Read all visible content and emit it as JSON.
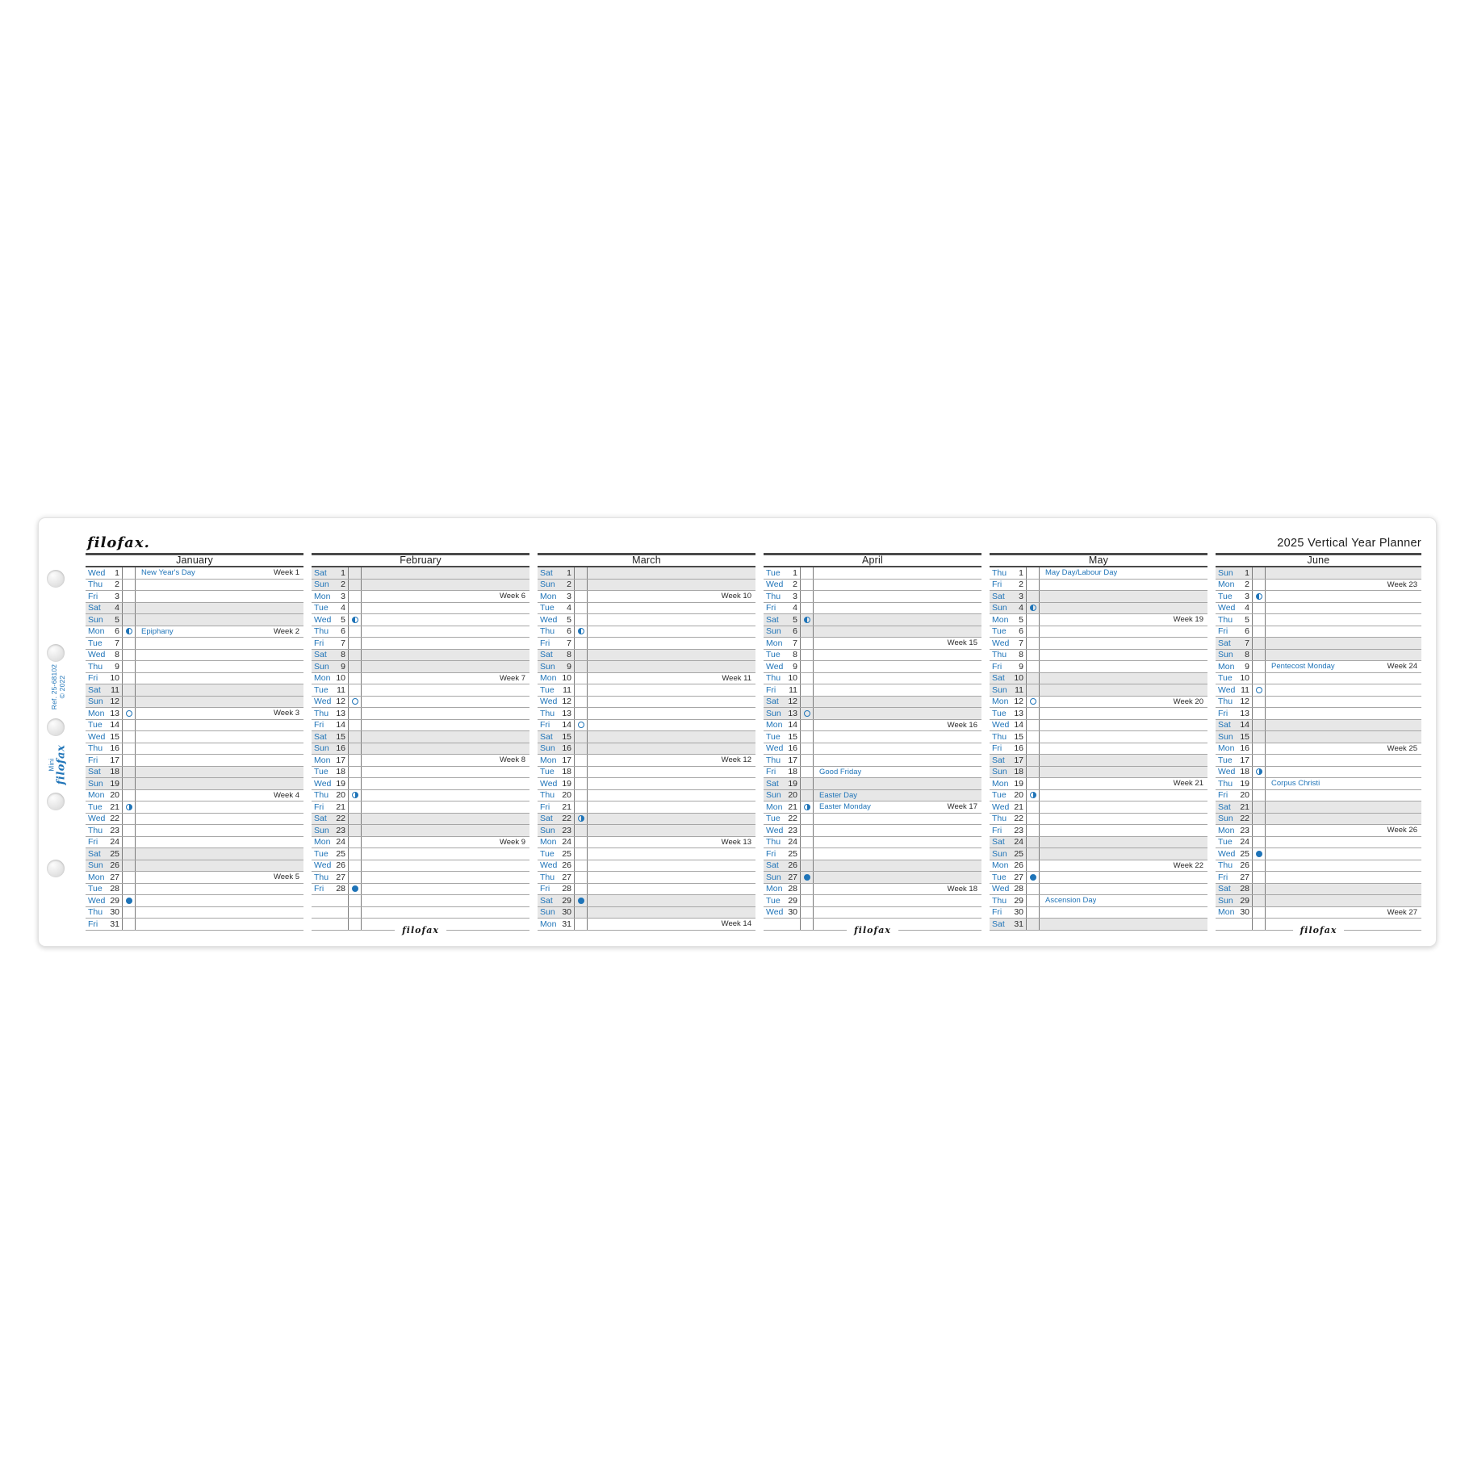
{
  "page": {
    "brand_logo": "filofax.",
    "title": "2025 Vertical Year Planner",
    "side_ref": {
      "line1": "Ref. 25-68102",
      "line2": "© 2022"
    },
    "side_brand": {
      "size_label": "Mini",
      "logo": "filofax"
    },
    "footer_logo": "filofax",
    "colors": {
      "accent_blue": "#1f74b8",
      "weekend_gray": "#e7e7e7",
      "rule_dark": "#4a4a4a",
      "row_line": "#a6a6a6",
      "text_dark": "#2a2a2a"
    },
    "moon_legend": {
      "first-quarter": "half circle filled left",
      "full-moon": "open circle",
      "last-quarter": "half circle filled right",
      "new-moon": "filled circle"
    }
  },
  "months": [
    {
      "name": "January",
      "footer_logo": false,
      "days": [
        {
          "dow": "Wed",
          "date": 1,
          "holiday": "New Year's Day",
          "week": "Week 1"
        },
        {
          "dow": "Thu",
          "date": 2
        },
        {
          "dow": "Fri",
          "date": 3
        },
        {
          "dow": "Sat",
          "date": 4
        },
        {
          "dow": "Sun",
          "date": 5
        },
        {
          "dow": "Mon",
          "date": 6,
          "moon": "first-quarter",
          "holiday": "Epiphany",
          "week": "Week 2"
        },
        {
          "dow": "Tue",
          "date": 7
        },
        {
          "dow": "Wed",
          "date": 8
        },
        {
          "dow": "Thu",
          "date": 9
        },
        {
          "dow": "Fri",
          "date": 10
        },
        {
          "dow": "Sat",
          "date": 11
        },
        {
          "dow": "Sun",
          "date": 12
        },
        {
          "dow": "Mon",
          "date": 13,
          "moon": "full-moon",
          "week": "Week 3"
        },
        {
          "dow": "Tue",
          "date": 14
        },
        {
          "dow": "Wed",
          "date": 15
        },
        {
          "dow": "Thu",
          "date": 16
        },
        {
          "dow": "Fri",
          "date": 17
        },
        {
          "dow": "Sat",
          "date": 18
        },
        {
          "dow": "Sun",
          "date": 19
        },
        {
          "dow": "Mon",
          "date": 20,
          "week": "Week 4"
        },
        {
          "dow": "Tue",
          "date": 21,
          "moon": "last-quarter"
        },
        {
          "dow": "Wed",
          "date": 22
        },
        {
          "dow": "Thu",
          "date": 23
        },
        {
          "dow": "Fri",
          "date": 24
        },
        {
          "dow": "Sat",
          "date": 25
        },
        {
          "dow": "Sun",
          "date": 26
        },
        {
          "dow": "Mon",
          "date": 27,
          "week": "Week 5"
        },
        {
          "dow": "Tue",
          "date": 28
        },
        {
          "dow": "Wed",
          "date": 29,
          "moon": "new-moon"
        },
        {
          "dow": "Thu",
          "date": 30
        },
        {
          "dow": "Fri",
          "date": 31
        }
      ]
    },
    {
      "name": "February",
      "footer_logo": true,
      "days": [
        {
          "dow": "Sat",
          "date": 1
        },
        {
          "dow": "Sun",
          "date": 2
        },
        {
          "dow": "Mon",
          "date": 3,
          "week": "Week 6"
        },
        {
          "dow": "Tue",
          "date": 4
        },
        {
          "dow": "Wed",
          "date": 5,
          "moon": "first-quarter"
        },
        {
          "dow": "Thu",
          "date": 6
        },
        {
          "dow": "Fri",
          "date": 7
        },
        {
          "dow": "Sat",
          "date": 8
        },
        {
          "dow": "Sun",
          "date": 9
        },
        {
          "dow": "Mon",
          "date": 10,
          "week": "Week 7"
        },
        {
          "dow": "Tue",
          "date": 11
        },
        {
          "dow": "Wed",
          "date": 12,
          "moon": "full-moon"
        },
        {
          "dow": "Thu",
          "date": 13
        },
        {
          "dow": "Fri",
          "date": 14
        },
        {
          "dow": "Sat",
          "date": 15
        },
        {
          "dow": "Sun",
          "date": 16
        },
        {
          "dow": "Mon",
          "date": 17,
          "week": "Week 8"
        },
        {
          "dow": "Tue",
          "date": 18
        },
        {
          "dow": "Wed",
          "date": 19
        },
        {
          "dow": "Thu",
          "date": 20,
          "moon": "last-quarter"
        },
        {
          "dow": "Fri",
          "date": 21
        },
        {
          "dow": "Sat",
          "date": 22
        },
        {
          "dow": "Sun",
          "date": 23
        },
        {
          "dow": "Mon",
          "date": 24,
          "week": "Week 9"
        },
        {
          "dow": "Tue",
          "date": 25
        },
        {
          "dow": "Wed",
          "date": 26
        },
        {
          "dow": "Thu",
          "date": 27
        },
        {
          "dow": "Fri",
          "date": 28,
          "moon": "new-moon"
        }
      ]
    },
    {
      "name": "March",
      "footer_logo": false,
      "days": [
        {
          "dow": "Sat",
          "date": 1
        },
        {
          "dow": "Sun",
          "date": 2
        },
        {
          "dow": "Mon",
          "date": 3,
          "week": "Week 10"
        },
        {
          "dow": "Tue",
          "date": 4
        },
        {
          "dow": "Wed",
          "date": 5
        },
        {
          "dow": "Thu",
          "date": 6,
          "moon": "first-quarter"
        },
        {
          "dow": "Fri",
          "date": 7
        },
        {
          "dow": "Sat",
          "date": 8
        },
        {
          "dow": "Sun",
          "date": 9
        },
        {
          "dow": "Mon",
          "date": 10,
          "week": "Week 11"
        },
        {
          "dow": "Tue",
          "date": 11
        },
        {
          "dow": "Wed",
          "date": 12
        },
        {
          "dow": "Thu",
          "date": 13
        },
        {
          "dow": "Fri",
          "date": 14,
          "moon": "full-moon"
        },
        {
          "dow": "Sat",
          "date": 15
        },
        {
          "dow": "Sun",
          "date": 16
        },
        {
          "dow": "Mon",
          "date": 17,
          "week": "Week 12"
        },
        {
          "dow": "Tue",
          "date": 18
        },
        {
          "dow": "Wed",
          "date": 19
        },
        {
          "dow": "Thu",
          "date": 20
        },
        {
          "dow": "Fri",
          "date": 21
        },
        {
          "dow": "Sat",
          "date": 22,
          "moon": "last-quarter"
        },
        {
          "dow": "Sun",
          "date": 23
        },
        {
          "dow": "Mon",
          "date": 24,
          "week": "Week 13"
        },
        {
          "dow": "Tue",
          "date": 25
        },
        {
          "dow": "Wed",
          "date": 26
        },
        {
          "dow": "Thu",
          "date": 27
        },
        {
          "dow": "Fri",
          "date": 28
        },
        {
          "dow": "Sat",
          "date": 29,
          "moon": "new-moon"
        },
        {
          "dow": "Sun",
          "date": 30
        },
        {
          "dow": "Mon",
          "date": 31,
          "week": "Week 14"
        }
      ]
    },
    {
      "name": "April",
      "footer_logo": true,
      "days": [
        {
          "dow": "Tue",
          "date": 1
        },
        {
          "dow": "Wed",
          "date": 2
        },
        {
          "dow": "Thu",
          "date": 3
        },
        {
          "dow": "Fri",
          "date": 4
        },
        {
          "dow": "Sat",
          "date": 5,
          "moon": "first-quarter"
        },
        {
          "dow": "Sun",
          "date": 6
        },
        {
          "dow": "Mon",
          "date": 7,
          "week": "Week 15"
        },
        {
          "dow": "Tue",
          "date": 8
        },
        {
          "dow": "Wed",
          "date": 9
        },
        {
          "dow": "Thu",
          "date": 10
        },
        {
          "dow": "Fri",
          "date": 11
        },
        {
          "dow": "Sat",
          "date": 12
        },
        {
          "dow": "Sun",
          "date": 13,
          "moon": "full-moon"
        },
        {
          "dow": "Mon",
          "date": 14,
          "week": "Week 16"
        },
        {
          "dow": "Tue",
          "date": 15
        },
        {
          "dow": "Wed",
          "date": 16
        },
        {
          "dow": "Thu",
          "date": 17
        },
        {
          "dow": "Fri",
          "date": 18,
          "holiday": "Good Friday"
        },
        {
          "dow": "Sat",
          "date": 19
        },
        {
          "dow": "Sun",
          "date": 20,
          "holiday": "Easter Day"
        },
        {
          "dow": "Mon",
          "date": 21,
          "moon": "last-quarter",
          "holiday": "Easter Monday",
          "week": "Week 17"
        },
        {
          "dow": "Tue",
          "date": 22
        },
        {
          "dow": "Wed",
          "date": 23
        },
        {
          "dow": "Thu",
          "date": 24
        },
        {
          "dow": "Fri",
          "date": 25
        },
        {
          "dow": "Sat",
          "date": 26
        },
        {
          "dow": "Sun",
          "date": 27,
          "moon": "new-moon"
        },
        {
          "dow": "Mon",
          "date": 28,
          "week": "Week 18"
        },
        {
          "dow": "Tue",
          "date": 29
        },
        {
          "dow": "Wed",
          "date": 30
        }
      ]
    },
    {
      "name": "May",
      "footer_logo": false,
      "days": [
        {
          "dow": "Thu",
          "date": 1,
          "holiday": "May Day/Labour Day"
        },
        {
          "dow": "Fri",
          "date": 2
        },
        {
          "dow": "Sat",
          "date": 3
        },
        {
          "dow": "Sun",
          "date": 4,
          "moon": "first-quarter"
        },
        {
          "dow": "Mon",
          "date": 5,
          "week": "Week 19"
        },
        {
          "dow": "Tue",
          "date": 6
        },
        {
          "dow": "Wed",
          "date": 7
        },
        {
          "dow": "Thu",
          "date": 8
        },
        {
          "dow": "Fri",
          "date": 9
        },
        {
          "dow": "Sat",
          "date": 10
        },
        {
          "dow": "Sun",
          "date": 11
        },
        {
          "dow": "Mon",
          "date": 12,
          "moon": "full-moon",
          "week": "Week 20"
        },
        {
          "dow": "Tue",
          "date": 13
        },
        {
          "dow": "Wed",
          "date": 14
        },
        {
          "dow": "Thu",
          "date": 15
        },
        {
          "dow": "Fri",
          "date": 16
        },
        {
          "dow": "Sat",
          "date": 17
        },
        {
          "dow": "Sun",
          "date": 18
        },
        {
          "dow": "Mon",
          "date": 19,
          "week": "Week 21"
        },
        {
          "dow": "Tue",
          "date": 20,
          "moon": "last-quarter"
        },
        {
          "dow": "Wed",
          "date": 21
        },
        {
          "dow": "Thu",
          "date": 22
        },
        {
          "dow": "Fri",
          "date": 23
        },
        {
          "dow": "Sat",
          "date": 24
        },
        {
          "dow": "Sun",
          "date": 25
        },
        {
          "dow": "Mon",
          "date": 26,
          "week": "Week 22"
        },
        {
          "dow": "Tue",
          "date": 27,
          "moon": "new-moon"
        },
        {
          "dow": "Wed",
          "date": 28
        },
        {
          "dow": "Thu",
          "date": 29,
          "holiday": "Ascension Day"
        },
        {
          "dow": "Fri",
          "date": 30
        },
        {
          "dow": "Sat",
          "date": 31
        }
      ]
    },
    {
      "name": "June",
      "footer_logo": true,
      "days": [
        {
          "dow": "Sun",
          "date": 1
        },
        {
          "dow": "Mon",
          "date": 2,
          "week": "Week 23"
        },
        {
          "dow": "Tue",
          "date": 3,
          "moon": "first-quarter"
        },
        {
          "dow": "Wed",
          "date": 4
        },
        {
          "dow": "Thu",
          "date": 5
        },
        {
          "dow": "Fri",
          "date": 6
        },
        {
          "dow": "Sat",
          "date": 7
        },
        {
          "dow": "Sun",
          "date": 8
        },
        {
          "dow": "Mon",
          "date": 9,
          "holiday": "Pentecost Monday",
          "week": "Week 24"
        },
        {
          "dow": "Tue",
          "date": 10
        },
        {
          "dow": "Wed",
          "date": 11,
          "moon": "full-moon"
        },
        {
          "dow": "Thu",
          "date": 12
        },
        {
          "dow": "Fri",
          "date": 13
        },
        {
          "dow": "Sat",
          "date": 14
        },
        {
          "dow": "Sun",
          "date": 15
        },
        {
          "dow": "Mon",
          "date": 16,
          "week": "Week 25"
        },
        {
          "dow": "Tue",
          "date": 17
        },
        {
          "dow": "Wed",
          "date": 18,
          "moon": "last-quarter"
        },
        {
          "dow": "Thu",
          "date": 19,
          "holiday": "Corpus Christi"
        },
        {
          "dow": "Fri",
          "date": 20
        },
        {
          "dow": "Sat",
          "date": 21
        },
        {
          "dow": "Sun",
          "date": 22
        },
        {
          "dow": "Mon",
          "date": 23,
          "week": "Week 26"
        },
        {
          "dow": "Tue",
          "date": 24
        },
        {
          "dow": "Wed",
          "date": 25,
          "moon": "new-moon"
        },
        {
          "dow": "Thu",
          "date": 26
        },
        {
          "dow": "Fri",
          "date": 27
        },
        {
          "dow": "Sat",
          "date": 28
        },
        {
          "dow": "Sun",
          "date": 29
        },
        {
          "dow": "Mon",
          "date": 30,
          "week": "Week 27"
        }
      ]
    }
  ]
}
